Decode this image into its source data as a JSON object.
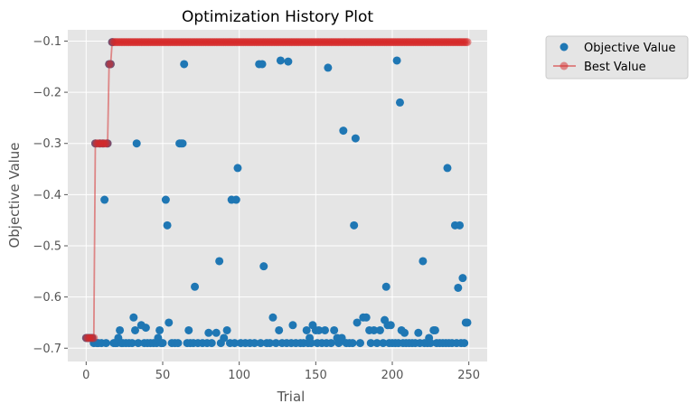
{
  "chart_data": {
    "type": "scatter",
    "title": "Optimization History Plot",
    "xlabel": "Trial",
    "ylabel": "Objective Value",
    "xlim": [
      -12,
      262
    ],
    "ylim": [
      -0.726,
      -0.078
    ],
    "xticks": [
      0,
      50,
      100,
      150,
      200,
      250
    ],
    "yticks": [
      -0.1,
      -0.2,
      -0.3,
      -0.4,
      -0.5,
      -0.6,
      -0.7
    ],
    "xtick_labels": [
      "0",
      "50",
      "100",
      "150",
      "200",
      "250"
    ],
    "ytick_labels": [
      "−0.1",
      "−0.2",
      "−0.3",
      "−0.4",
      "−0.5",
      "−0.6",
      "−0.7"
    ],
    "grid": true,
    "legend": {
      "placement": "outside-top-right",
      "entries": [
        "Objective Value",
        "Best Value"
      ]
    },
    "colors": {
      "objective": "#1f77b4",
      "best": "#d62728",
      "axes_bg": "#e5e5e5",
      "grid": "#ffffff",
      "text": "#555555"
    },
    "series": [
      {
        "name": "Objective Value",
        "style": "markers",
        "points": [
          [
            0,
            -0.68
          ],
          [
            1,
            -0.68
          ],
          [
            2,
            -0.68
          ],
          [
            3,
            -0.68
          ],
          [
            4,
            -0.68
          ],
          [
            5,
            -0.69
          ],
          [
            6,
            -0.3
          ],
          [
            7,
            -0.69
          ],
          [
            8,
            -0.69
          ],
          [
            9,
            -0.3
          ],
          [
            10,
            -0.69
          ],
          [
            11,
            -0.3
          ],
          [
            12,
            -0.41
          ],
          [
            13,
            -0.69
          ],
          [
            14,
            -0.3
          ],
          [
            15,
            -0.145
          ],
          [
            16,
            -0.145
          ],
          [
            17,
            -0.102
          ],
          [
            18,
            -0.69
          ],
          [
            19,
            -0.69
          ],
          [
            20,
            -0.69
          ],
          [
            21,
            -0.68
          ],
          [
            22,
            -0.665
          ],
          [
            23,
            -0.69
          ],
          [
            24,
            -0.69
          ],
          [
            26,
            -0.69
          ],
          [
            28,
            -0.69
          ],
          [
            30,
            -0.69
          ],
          [
            31,
            -0.64
          ],
          [
            32,
            -0.665
          ],
          [
            33,
            -0.3
          ],
          [
            34,
            -0.69
          ],
          [
            36,
            -0.655
          ],
          [
            38,
            -0.69
          ],
          [
            39,
            -0.66
          ],
          [
            40,
            -0.69
          ],
          [
            42,
            -0.69
          ],
          [
            44,
            -0.69
          ],
          [
            46,
            -0.69
          ],
          [
            47,
            -0.68
          ],
          [
            48,
            -0.665
          ],
          [
            49,
            -0.69
          ],
          [
            50,
            -0.69
          ],
          [
            52,
            -0.41
          ],
          [
            53,
            -0.46
          ],
          [
            54,
            -0.65
          ],
          [
            56,
            -0.69
          ],
          [
            58,
            -0.69
          ],
          [
            60,
            -0.69
          ],
          [
            61,
            -0.3
          ],
          [
            62,
            -0.3
          ],
          [
            63,
            -0.3
          ],
          [
            64,
            -0.145
          ],
          [
            66,
            -0.69
          ],
          [
            67,
            -0.665
          ],
          [
            68,
            -0.69
          ],
          [
            70,
            -0.69
          ],
          [
            71,
            -0.58
          ],
          [
            73,
            -0.69
          ],
          [
            76,
            -0.69
          ],
          [
            79,
            -0.69
          ],
          [
            80,
            -0.67
          ],
          [
            82,
            -0.69
          ],
          [
            85,
            -0.67
          ],
          [
            87,
            -0.53
          ],
          [
            88,
            -0.69
          ],
          [
            90,
            -0.68
          ],
          [
            92,
            -0.665
          ],
          [
            94,
            -0.69
          ],
          [
            95,
            -0.41
          ],
          [
            97,
            -0.69
          ],
          [
            98,
            -0.41
          ],
          [
            99,
            -0.348
          ],
          [
            101,
            -0.69
          ],
          [
            104,
            -0.69
          ],
          [
            107,
            -0.69
          ],
          [
            110,
            -0.69
          ],
          [
            113,
            -0.145
          ],
          [
            114,
            -0.69
          ],
          [
            115,
            -0.145
          ],
          [
            116,
            -0.54
          ],
          [
            118,
            -0.69
          ],
          [
            120,
            -0.69
          ],
          [
            122,
            -0.64
          ],
          [
            124,
            -0.69
          ],
          [
            126,
            -0.665
          ],
          [
            127,
            -0.138
          ],
          [
            128,
            -0.69
          ],
          [
            131,
            -0.69
          ],
          [
            132,
            -0.14
          ],
          [
            134,
            -0.69
          ],
          [
            135,
            -0.655
          ],
          [
            137,
            -0.69
          ],
          [
            140,
            -0.69
          ],
          [
            142,
            -0.69
          ],
          [
            144,
            -0.665
          ],
          [
            145,
            -0.69
          ],
          [
            146,
            -0.68
          ],
          [
            147,
            -0.69
          ],
          [
            148,
            -0.655
          ],
          [
            150,
            -0.665
          ],
          [
            151,
            -0.69
          ],
          [
            152,
            -0.665
          ],
          [
            154,
            -0.69
          ],
          [
            156,
            -0.665
          ],
          [
            157,
            -0.69
          ],
          [
            158,
            -0.152
          ],
          [
            160,
            -0.69
          ],
          [
            162,
            -0.665
          ],
          [
            164,
            -0.68
          ],
          [
            165,
            -0.69
          ],
          [
            167,
            -0.68
          ],
          [
            168,
            -0.275
          ],
          [
            170,
            -0.69
          ],
          [
            172,
            -0.69
          ],
          [
            174,
            -0.69
          ],
          [
            175,
            -0.46
          ],
          [
            176,
            -0.29
          ],
          [
            177,
            -0.65
          ],
          [
            179,
            -0.69
          ],
          [
            181,
            -0.64
          ],
          [
            183,
            -0.64
          ],
          [
            185,
            -0.665
          ],
          [
            186,
            -0.69
          ],
          [
            188,
            -0.665
          ],
          [
            190,
            -0.69
          ],
          [
            192,
            -0.665
          ],
          [
            194,
            -0.69
          ],
          [
            195,
            -0.645
          ],
          [
            196,
            -0.58
          ],
          [
            197,
            -0.655
          ],
          [
            198,
            -0.69
          ],
          [
            199,
            -0.655
          ],
          [
            200,
            -0.69
          ],
          [
            202,
            -0.69
          ],
          [
            203,
            -0.138
          ],
          [
            204,
            -0.69
          ],
          [
            205,
            -0.22
          ],
          [
            206,
            -0.665
          ],
          [
            207,
            -0.69
          ],
          [
            208,
            -0.67
          ],
          [
            209,
            -0.69
          ],
          [
            211,
            -0.69
          ],
          [
            213,
            -0.69
          ],
          [
            215,
            -0.69
          ],
          [
            217,
            -0.67
          ],
          [
            218,
            -0.69
          ],
          [
            220,
            -0.53
          ],
          [
            221,
            -0.69
          ],
          [
            223,
            -0.69
          ],
          [
            224,
            -0.68
          ],
          [
            225,
            -0.69
          ],
          [
            227,
            -0.665
          ],
          [
            228,
            -0.665
          ],
          [
            229,
            -0.69
          ],
          [
            231,
            -0.69
          ],
          [
            233,
            -0.69
          ],
          [
            235,
            -0.69
          ],
          [
            236,
            -0.348
          ],
          [
            237,
            -0.69
          ],
          [
            239,
            -0.69
          ],
          [
            241,
            -0.46
          ],
          [
            242,
            -0.69
          ],
          [
            243,
            -0.582
          ],
          [
            244,
            -0.46
          ],
          [
            245,
            -0.69
          ],
          [
            246,
            -0.563
          ],
          [
            247,
            -0.69
          ],
          [
            248,
            -0.65
          ],
          [
            249,
            -0.65
          ]
        ]
      },
      {
        "name": "Best Value",
        "style": "line+markers",
        "points": [
          [
            0,
            -0.68
          ],
          [
            1,
            -0.68
          ],
          [
            2,
            -0.68
          ],
          [
            3,
            -0.68
          ],
          [
            4,
            -0.68
          ],
          [
            5,
            -0.68
          ],
          [
            6,
            -0.3
          ],
          [
            7,
            -0.3
          ],
          [
            8,
            -0.3
          ],
          [
            9,
            -0.3
          ],
          [
            10,
            -0.3
          ],
          [
            11,
            -0.3
          ],
          [
            12,
            -0.3
          ],
          [
            13,
            -0.3
          ],
          [
            14,
            -0.3
          ],
          [
            15,
            -0.145
          ],
          [
            16,
            -0.145
          ],
          [
            17,
            -0.102
          ]
        ],
        "constant_after": {
          "from": 17,
          "to": 249,
          "value": -0.102
        }
      }
    ]
  }
}
